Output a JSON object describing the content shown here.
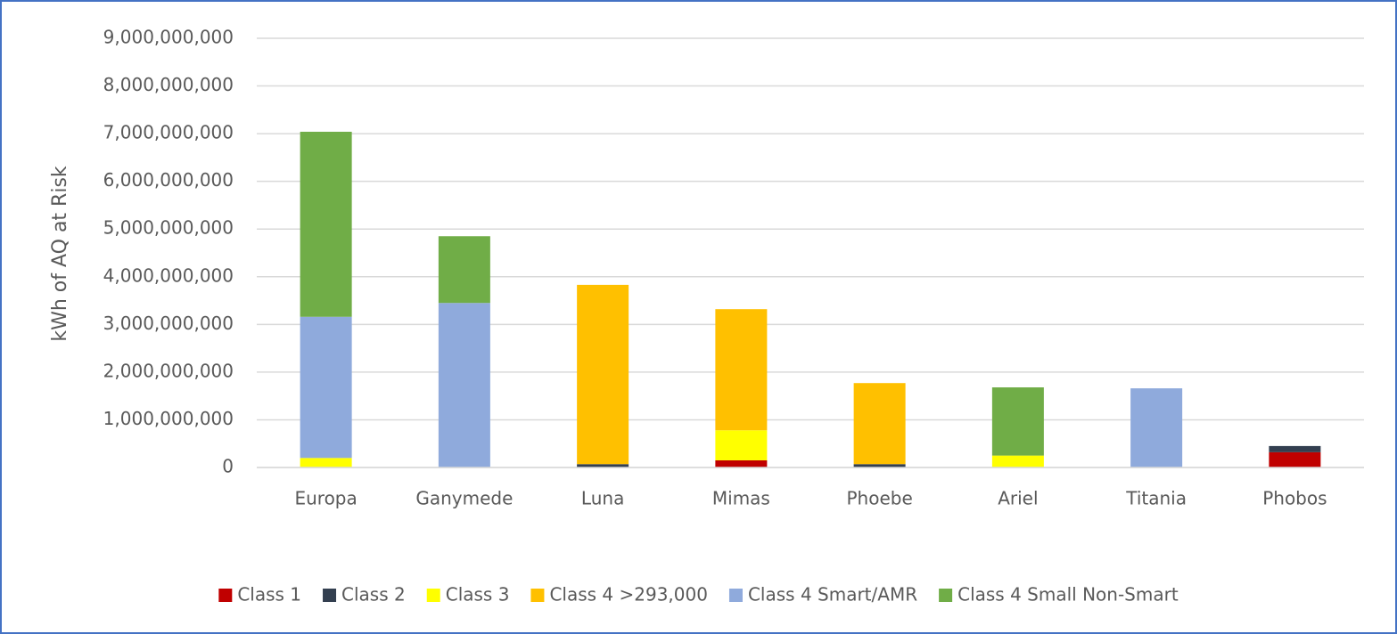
{
  "chart_data": {
    "type": "stacked_bar",
    "y_label": "kWh of AQ at Risk",
    "categories": [
      "Europa",
      "Ganymede",
      "Luna",
      "Mimas",
      "Phoebe",
      "Ariel",
      "Titania",
      "Phobos"
    ],
    "series": [
      {
        "name": "Class 1",
        "color": "#c00000",
        "values": [
          0,
          0,
          0,
          150000000,
          0,
          0,
          0,
          320000000
        ]
      },
      {
        "name": "Class 2",
        "color": "#333f50",
        "values": [
          0,
          0,
          70000000,
          0,
          70000000,
          0,
          0,
          130000000
        ]
      },
      {
        "name": "Class 3",
        "color": "#ffff00",
        "values": [
          200000000,
          0,
          0,
          630000000,
          0,
          250000000,
          0,
          0
        ]
      },
      {
        "name": "Class 4 >293,000",
        "color": "#ffc000",
        "values": [
          0,
          0,
          3760000000,
          2540000000,
          1700000000,
          0,
          0,
          0
        ]
      },
      {
        "name": "Class 4 Smart/AMR",
        "color": "#8faadc",
        "values": [
          2960000000,
          3450000000,
          0,
          0,
          0,
          0,
          1660000000,
          0
        ]
      },
      {
        "name": "Class 4 Small Non-Smart",
        "color": "#70ad47",
        "values": [
          3880000000,
          1400000000,
          0,
          0,
          0,
          1430000000,
          0,
          0
        ]
      }
    ],
    "ylim": [
      0,
      9000000000
    ],
    "yticks": [
      0,
      {
        "value": 1000000000,
        "label": "1,000,000,000"
      },
      {
        "value": 2000000000,
        "label": "2,000,000,000"
      },
      {
        "value": 3000000000,
        "label": "3,000,000,000"
      },
      {
        "value": 4000000000,
        "label": "4,000,000,000"
      },
      {
        "value": 5000000000,
        "label": "5,000,000,000"
      },
      {
        "value": 6000000000,
        "label": "6,000,000,000"
      },
      {
        "value": 7000000000,
        "label": "7,000,000,000"
      },
      {
        "value": 8000000000,
        "label": "8,000,000,000"
      },
      {
        "value": 9000000000,
        "label": "9,000,000,000"
      }
    ],
    "grid": true,
    "legend": "bottom"
  }
}
